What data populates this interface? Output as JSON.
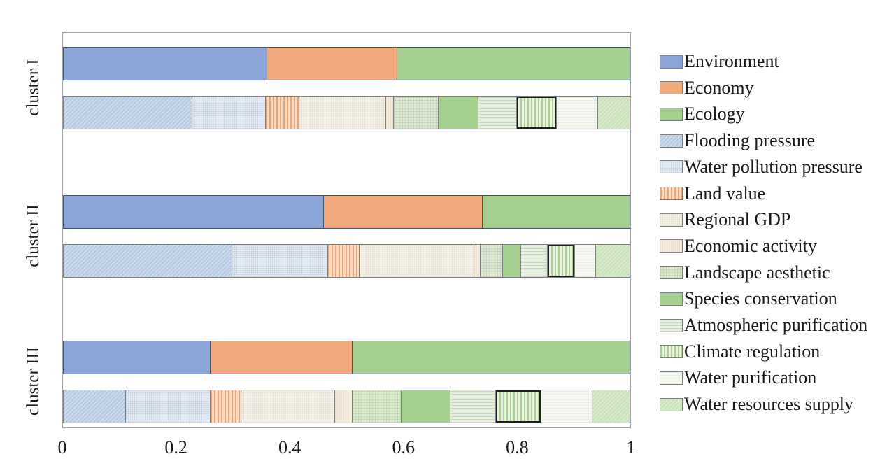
{
  "figure": {
    "background": "#ffffff"
  },
  "chart_data": {
    "type": "bar",
    "orientation": "horizontal",
    "stacked": true,
    "title": "",
    "xlabel": "",
    "ylabel": "",
    "xlim": [
      0,
      1
    ],
    "grid": false,
    "legend_position": "right",
    "x_ticks": [
      {
        "label": "0",
        "value": 0
      },
      {
        "label": "0.2",
        "value": 0.2
      },
      {
        "label": "0.4",
        "value": 0.4
      },
      {
        "label": "0.6",
        "value": 0.6
      },
      {
        "label": "0.8",
        "value": 0.8
      },
      {
        "label": "1",
        "value": 1
      }
    ],
    "main_series": [
      "Environment",
      "Economy",
      "Ecology"
    ],
    "sub_series": [
      "Flooding pressure",
      "Water pollution pressure",
      "Land value",
      "Regional GDP",
      "Economic activity",
      "Landscape aesthetic",
      "Species conservation",
      "Atmospheric purification",
      "Climate regulation",
      "Water purification",
      "Water resources supply"
    ],
    "highlighted_sub_series": "Climate regulation",
    "highlight_style": "black-outline",
    "clusters": [
      {
        "label": "cluster I",
        "main": [
          0.36,
          0.23,
          0.41
        ],
        "sub": [
          0.228,
          0.129,
          0.06,
          0.153,
          0.013,
          0.079,
          0.071,
          0.068,
          0.07,
          0.074,
          0.055
        ]
      },
      {
        "label": "cluster II",
        "main": [
          0.46,
          0.28,
          0.26
        ],
        "sub": [
          0.298,
          0.169,
          0.056,
          0.202,
          0.012,
          0.039,
          0.033,
          0.046,
          0.049,
          0.037,
          0.059
        ]
      },
      {
        "label": "cluster III",
        "main": [
          0.26,
          0.25,
          0.49
        ],
        "sub": [
          0.11,
          0.15,
          0.054,
          0.166,
          0.031,
          0.086,
          0.087,
          0.08,
          0.08,
          0.09,
          0.066
        ]
      }
    ]
  },
  "legend": {
    "items": [
      {
        "label": "Environment",
        "key": "environment"
      },
      {
        "label": "Economy",
        "key": "economy"
      },
      {
        "label": "Ecology",
        "key": "ecology"
      },
      {
        "label": "Flooding pressure",
        "key": "flooding-pressure"
      },
      {
        "label": "Water pollution pressure",
        "key": "water-pollution-pressure"
      },
      {
        "label": "Land value",
        "key": "land-value"
      },
      {
        "label": "Regional GDP",
        "key": "regional-gdp"
      },
      {
        "label": "Economic activity",
        "key": "economic-activity"
      },
      {
        "label": "Landscape aesthetic",
        "key": "landscape-aesthetic"
      },
      {
        "label": "Species conservation",
        "key": "species-conservation"
      },
      {
        "label": "Atmospheric purification",
        "key": "atmospheric-purification"
      },
      {
        "label": "Climate regulation",
        "key": "climate-regulation"
      },
      {
        "label": "Water purification",
        "key": "water-purification"
      },
      {
        "label": "Water resources supply",
        "key": "water-resources-supply"
      }
    ]
  },
  "colors": {
    "environment": "#8CA5D8",
    "economy": "#F1A87A",
    "ecology": "#A5CF8E",
    "flooding-pressure": "#BACCE4",
    "water-pollution-pressure": "#E3EAF2",
    "land-value": "#EEA478",
    "regional-gdp": "#F4F1E9",
    "economic-activity": "#F3EADD",
    "landscape-aesthetic": "#DDE9D3",
    "species-conservation": "#A5CF8E",
    "atmospheric-purification": "#E5EFDD",
    "climate-regulation": "#ABD293",
    "water-purification": "#F5F8F0",
    "water-resources-supply": "#CCE3BD",
    "main_bar_border": "#44546A",
    "sub_bar_border": "#7F7F7F",
    "highlight_border": "#1F1F1F",
    "plot_border": "#A3A3A3"
  },
  "patterns": {
    "flooding-pressure": "diagonal-hatch",
    "water-pollution-pressure": "fine-grid",
    "land-value": "vertical-stripes",
    "landscape-aesthetic": "grid",
    "atmospheric-purification": "horizontal-lines",
    "climate-regulation": "vertical-stripes",
    "water-resources-supply": "diagonal-hatch"
  }
}
